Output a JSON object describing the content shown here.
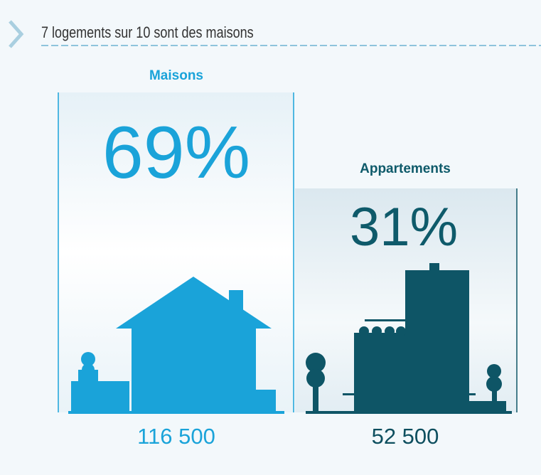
{
  "header": {
    "title": "7 logements sur 10 sont des maisons"
  },
  "items": [
    {
      "label": "Maisons",
      "percent": "69%",
      "count": "116 500"
    },
    {
      "label": "Appartements",
      "percent": "31%",
      "count": "52 500"
    }
  ]
}
